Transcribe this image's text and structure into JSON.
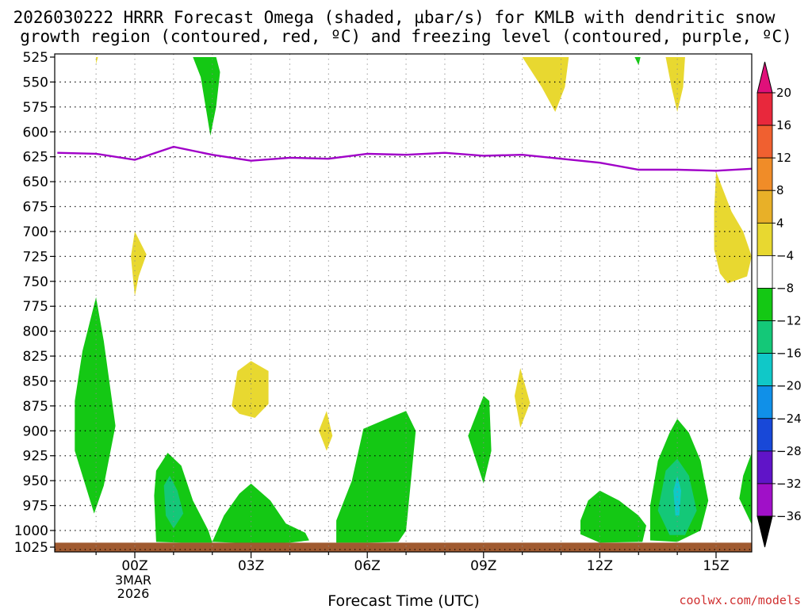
{
  "chart_data": {
    "type": "heatmap",
    "title_line1": "2026030222 HRRR Forecast Omega (shaded, µbar/s) for KMLB with dendritic snow",
    "title_line2": "growth region (contoured, red, ºC) and freezing level (contoured, purple, ºC)",
    "xlabel": "Forecast Time (UTC)",
    "credit": "coolwx.com/models",
    "x_range_hours": [
      -2,
      16
    ],
    "y_levels_hpa": [
      525,
      550,
      575,
      600,
      625,
      650,
      675,
      700,
      725,
      750,
      775,
      800,
      825,
      850,
      875,
      900,
      925,
      950,
      975,
      1000,
      1025
    ],
    "x_ticks": [
      {
        "hour": 0,
        "label": "00Z",
        "sub1": "3MAR",
        "sub2": "2026"
      },
      {
        "hour": 3,
        "label": "03Z"
      },
      {
        "hour": 6,
        "label": "06Z"
      },
      {
        "hour": 9,
        "label": "09Z"
      },
      {
        "hour": 12,
        "label": "12Z"
      },
      {
        "hour": 15,
        "label": "15Z"
      }
    ],
    "colorbar": {
      "labels": [
        "20",
        "16",
        "12",
        "8",
        "4",
        "-4",
        "-8",
        "-12",
        "-16",
        "-20",
        "-24",
        "-28",
        "-32",
        "-36"
      ],
      "top_color": "#e0107a",
      "bottom_color": "#000000",
      "colors": [
        "#e8283c",
        "#f06030",
        "#f08c28",
        "#e8b028",
        "#e8d830",
        "#ffffff",
        "#14c814",
        "#14c878",
        "#10c8c8",
        "#1090e8",
        "#1848d8",
        "#6014c8",
        "#a010c8",
        "#a0a0a0"
      ]
    },
    "freezing_level": {
      "name": "freezing level (ºC)",
      "color": "#a000c8",
      "hours": [
        -2,
        -1,
        0,
        1,
        2,
        3,
        4,
        5,
        6,
        7,
        8,
        9,
        10,
        11,
        12,
        13,
        14,
        15,
        16
      ],
      "pressure": [
        621,
        622,
        628,
        615,
        623,
        629,
        626,
        627,
        622,
        623,
        621,
        624,
        623,
        627,
        631,
        638,
        638,
        639,
        637
      ]
    },
    "omega_regions": [
      {
        "name": "green-top-0150",
        "color": "#14c814",
        "pts": [
          [
            1.5,
            525
          ],
          [
            2.1,
            525
          ],
          [
            2.2,
            540
          ],
          [
            2.1,
            575
          ],
          [
            1.95,
            604
          ],
          [
            1.85,
            580
          ],
          [
            1.7,
            545
          ]
        ]
      },
      {
        "name": "green-low-level-left",
        "color": "#14c814",
        "pts": [
          [
            -1.0,
            766
          ],
          [
            -0.8,
            810
          ],
          [
            -0.5,
            895
          ],
          [
            -0.8,
            955
          ],
          [
            -1.05,
            983
          ],
          [
            -1.55,
            920
          ],
          [
            -1.55,
            870
          ],
          [
            -1.35,
            820
          ]
        ]
      },
      {
        "name": "green-0000-0200-bottom",
        "color": "#14c814",
        "pts": [
          [
            0.5,
            965
          ],
          [
            0.55,
            940
          ],
          [
            0.85,
            922
          ],
          [
            1.2,
            935
          ],
          [
            1.5,
            970
          ],
          [
            1.9,
            1000
          ],
          [
            2.0,
            1016
          ],
          [
            1.2,
            1016
          ],
          [
            0.55,
            1015
          ]
        ]
      },
      {
        "name": "green-0300-bottom",
        "color": "#14c814",
        "pts": [
          [
            2.0,
            1015
          ],
          [
            2.3,
            985
          ],
          [
            2.7,
            963
          ],
          [
            3.0,
            953
          ],
          [
            3.5,
            970
          ],
          [
            3.9,
            993
          ],
          [
            4.4,
            1003
          ],
          [
            4.5,
            1013
          ],
          [
            4.0,
            1016
          ],
          [
            3.0,
            1017
          ]
        ]
      },
      {
        "name": "green-0600-bottom",
        "color": "#14c814",
        "pts": [
          [
            5.2,
            1016
          ],
          [
            5.2,
            990
          ],
          [
            5.6,
            950
          ],
          [
            5.9,
            898
          ],
          [
            6.5,
            888
          ],
          [
            7.0,
            880
          ],
          [
            7.25,
            900
          ],
          [
            7.1,
            960
          ],
          [
            7.0,
            1000
          ],
          [
            6.8,
            1015
          ],
          [
            6.0,
            1016
          ]
        ]
      },
      {
        "name": "green-0900",
        "color": "#14c814",
        "pts": [
          [
            8.7,
            895
          ],
          [
            9.0,
            865
          ],
          [
            9.15,
            870
          ],
          [
            9.2,
            920
          ],
          [
            9.0,
            953
          ],
          [
            8.6,
            905
          ]
        ]
      },
      {
        "name": "green-1245-bottom",
        "color": "#14c814",
        "pts": [
          [
            11.5,
            990
          ],
          [
            11.7,
            970
          ],
          [
            12.0,
            960
          ],
          [
            12.5,
            970
          ],
          [
            13.0,
            985
          ],
          [
            13.2,
            995
          ],
          [
            13.1,
            1015
          ],
          [
            12.0,
            1016
          ],
          [
            11.5,
            1005
          ]
        ]
      },
      {
        "name": "green-1400-bottom",
        "color": "#14c814",
        "pts": [
          [
            13.3,
            975
          ],
          [
            13.5,
            930
          ],
          [
            13.8,
            902
          ],
          [
            14.0,
            888
          ],
          [
            14.3,
            902
          ],
          [
            14.6,
            930
          ],
          [
            14.8,
            970
          ],
          [
            14.6,
            1000
          ],
          [
            14.0,
            1015
          ],
          [
            13.3,
            1013
          ]
        ]
      },
      {
        "name": "green-1600-edge",
        "color": "#14c814",
        "pts": [
          [
            16.0,
            922
          ],
          [
            15.7,
            945
          ],
          [
            15.6,
            968
          ],
          [
            16.0,
            994
          ]
        ]
      },
      {
        "name": "green-1300-small",
        "color": "#14c814",
        "pts": [
          [
            12.9,
            525
          ],
          [
            13.05,
            525
          ],
          [
            13.0,
            533
          ]
        ]
      },
      {
        "name": "teal-0100",
        "color": "#14c878",
        "pts": [
          [
            0.75,
            955
          ],
          [
            0.9,
            945
          ],
          [
            1.1,
            960
          ],
          [
            1.25,
            983
          ],
          [
            1.0,
            998
          ],
          [
            0.8,
            985
          ]
        ]
      },
      {
        "name": "teal-1400",
        "color": "#14c878",
        "pts": [
          [
            13.5,
            980
          ],
          [
            13.7,
            940
          ],
          [
            14.0,
            928
          ],
          [
            14.3,
            945
          ],
          [
            14.5,
            980
          ],
          [
            14.2,
            1006
          ],
          [
            13.8,
            1006
          ]
        ]
      },
      {
        "name": "cyan-1400",
        "color": "#10c8c8",
        "pts": [
          [
            13.9,
            960
          ],
          [
            14.0,
            945
          ],
          [
            14.1,
            960
          ],
          [
            14.05,
            985
          ],
          [
            13.95,
            985
          ]
        ]
      },
      {
        "name": "yellow-top-small",
        "color": "#e8d830",
        "pts": [
          [
            -1.0,
            525
          ],
          [
            -0.95,
            525
          ],
          [
            -1.0,
            532
          ]
        ]
      },
      {
        "name": "yellow-top-1100",
        "color": "#e8d830",
        "pts": [
          [
            10.0,
            525
          ],
          [
            11.2,
            525
          ],
          [
            11.1,
            555
          ],
          [
            10.85,
            580
          ],
          [
            10.5,
            555
          ]
        ]
      },
      {
        "name": "yellow-top-1400",
        "color": "#e8d830",
        "pts": [
          [
            13.7,
            525
          ],
          [
            14.2,
            525
          ],
          [
            14.15,
            555
          ],
          [
            14.0,
            580
          ],
          [
            13.85,
            555
          ]
        ]
      },
      {
        "name": "yellow-0000-mid",
        "color": "#e8d830",
        "pts": [
          [
            -0.1,
            725
          ],
          [
            0.0,
            700
          ],
          [
            0.3,
            723
          ],
          [
            0.1,
            745
          ],
          [
            0.0,
            765
          ]
        ]
      },
      {
        "name": "yellow-0300",
        "color": "#e8d830",
        "pts": [
          [
            2.5,
            875
          ],
          [
            2.65,
            840
          ],
          [
            3.0,
            830
          ],
          [
            3.45,
            840
          ],
          [
            3.45,
            873
          ],
          [
            3.1,
            887
          ],
          [
            2.7,
            883
          ]
        ]
      },
      {
        "name": "yellow-0500",
        "color": "#e8d830",
        "pts": [
          [
            4.75,
            900
          ],
          [
            4.95,
            880
          ],
          [
            5.1,
            905
          ],
          [
            4.95,
            920
          ]
        ]
      },
      {
        "name": "yellow-1000",
        "color": "#e8d830",
        "pts": [
          [
            9.8,
            865
          ],
          [
            9.95,
            837
          ],
          [
            10.2,
            872
          ],
          [
            9.95,
            897
          ]
        ]
      },
      {
        "name": "yellow-1500-right",
        "color": "#e8d830",
        "pts": [
          [
            15.0,
            640
          ],
          [
            15.4,
            680
          ],
          [
            15.7,
            700
          ],
          [
            16.0,
            725
          ],
          [
            15.8,
            745
          ],
          [
            15.3,
            752
          ],
          [
            15.1,
            742
          ],
          [
            14.95,
            718
          ],
          [
            14.95,
            680
          ]
        ]
      }
    ],
    "ground_color": "#a05a30"
  }
}
